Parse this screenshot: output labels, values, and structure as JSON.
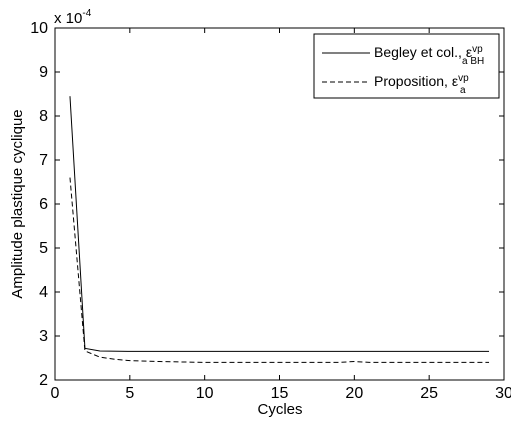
{
  "chart_data": {
    "type": "line",
    "xlabel": "Cycles",
    "ylabel": "Amplitude plastique cyclique",
    "y_scale_text": "x 10",
    "y_scale_exp": "-4",
    "xlim": [
      0,
      30
    ],
    "ylim": [
      2,
      10
    ],
    "xticks": [
      0,
      5,
      10,
      15,
      20,
      25,
      30
    ],
    "yticks": [
      2,
      3,
      4,
      5,
      6,
      7,
      8,
      9,
      10
    ],
    "grid": false,
    "legend_position": "top-right",
    "series": [
      {
        "name": "Begley et col., ε",
        "name_sup": "vp",
        "name_sub": "a BH",
        "style": "solid",
        "color": "#000000",
        "x": [
          1,
          2,
          3,
          5,
          10,
          15,
          20,
          25,
          29
        ],
        "y": [
          8.45,
          2.72,
          2.66,
          2.65,
          2.65,
          2.65,
          2.65,
          2.65,
          2.65
        ]
      },
      {
        "name": "Proposition, ε",
        "name_sup": "vp",
        "name_sub": "a",
        "style": "dashed",
        "color": "#000000",
        "x": [
          1,
          2,
          3,
          4,
          5,
          7,
          10,
          15,
          19,
          20,
          21,
          25,
          29
        ],
        "y": [
          6.6,
          2.66,
          2.52,
          2.47,
          2.44,
          2.42,
          2.4,
          2.4,
          2.4,
          2.42,
          2.4,
          2.4,
          2.4
        ]
      }
    ]
  }
}
